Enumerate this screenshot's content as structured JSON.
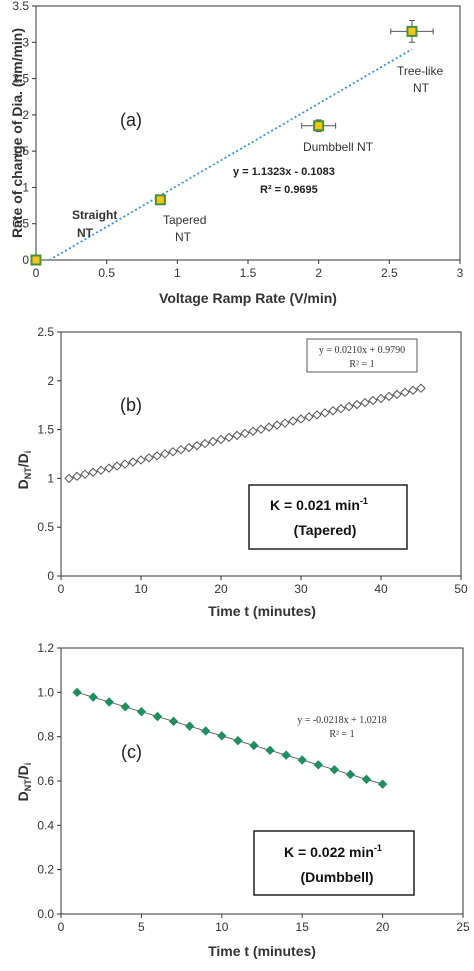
{
  "chart_data": [
    {
      "type": "scatter",
      "panel_label": "(a)",
      "xlabel": "Voltage Ramp Rate (V/min)",
      "ylabel": "Rate of change of Dia. (nm/min)",
      "xlim": [
        0,
        3
      ],
      "ylim": [
        0,
        3.5
      ],
      "xticks": [
        "0",
        "0.5",
        "1",
        "1.5",
        "2",
        "2.5",
        "3"
      ],
      "yticks": [
        "0",
        "0.5",
        "1",
        "1.5",
        "2",
        "2.5",
        "3",
        "3.5"
      ],
      "grid": false,
      "points": [
        {
          "x": 0,
          "y": 0,
          "label": "Straight NT",
          "xerr": 0,
          "yerr": 0
        },
        {
          "x": 0.88,
          "y": 0.83,
          "label": "Tapered NT",
          "xerr": 0.03,
          "yerr": 0.05
        },
        {
          "x": 2.0,
          "y": 1.85,
          "label": "Dumbbell NT",
          "xerr": 0.12,
          "yerr": 0.08
        },
        {
          "x": 2.66,
          "y": 3.15,
          "label": "Tree-like NT",
          "xerr": 0.15,
          "yerr": 0.15
        }
      ],
      "trendline": {
        "slope": 1.1323,
        "intercept": -0.1083,
        "x_range": [
          0,
          2.66
        ]
      },
      "equation": "y = 1.1323x - 0.1083",
      "r2": "R² = 0.9695",
      "marker_color": "#f5c518",
      "marker_edge": "#4a8f3c",
      "trend_color": "#3a8fd6"
    },
    {
      "type": "line",
      "panel_label": "(b)",
      "xlabel": "Time t (minutes)",
      "ylabel": "DNT/Di",
      "xlim": [
        0,
        50
      ],
      "ylim": [
        0,
        2.5
      ],
      "xticks": [
        "0",
        "10",
        "20",
        "30",
        "40",
        "50"
      ],
      "yticks": [
        "0",
        "0.5",
        "1",
        "1.5",
        "2",
        "2.5"
      ],
      "grid": false,
      "series": [
        {
          "marker": "open-diamond",
          "x": [
            1,
            2,
            3,
            4,
            5,
            6,
            7,
            8,
            9,
            10,
            11,
            12,
            13,
            14,
            15,
            16,
            17,
            18,
            19,
            20,
            21,
            22,
            23,
            24,
            25,
            26,
            27,
            28,
            29,
            30,
            31,
            32,
            33,
            34,
            35,
            36,
            37,
            38,
            39,
            40,
            41,
            42,
            43,
            44,
            45
          ],
          "slope": 0.021,
          "intercept": 0.979
        }
      ],
      "equation": "y = 0.0210x + 0.9790",
      "r2": "R² = 1",
      "k_text": "K = 0.021 min",
      "k_sup": "-1",
      "k_label": "(Tapered)"
    },
    {
      "type": "line",
      "panel_label": "(c)",
      "xlabel": "Time t (minutes)",
      "ylabel": "DNT/Di",
      "xlim": [
        0,
        25
      ],
      "ylim": [
        0,
        1.2
      ],
      "xticks": [
        "0",
        "5",
        "10",
        "15",
        "20",
        "25"
      ],
      "yticks": [
        "0.0",
        "0.2",
        "0.4",
        "0.6",
        "0.8",
        "1.0",
        "1.2"
      ],
      "grid": false,
      "series": [
        {
          "marker": "filled-diamond",
          "color": "#1f8f5f",
          "x": [
            1,
            2,
            3,
            4,
            5,
            6,
            7,
            8,
            9,
            10,
            11,
            12,
            13,
            14,
            15,
            16,
            17,
            18,
            19,
            20
          ],
          "slope": -0.0218,
          "intercept": 1.0218
        }
      ],
      "equation": "y = -0.0218x + 1.0218",
      "r2": "R² = 1",
      "k_text": "K =  0.022 min",
      "k_sup": "-1",
      "k_label": "(Dumbbell)"
    }
  ]
}
